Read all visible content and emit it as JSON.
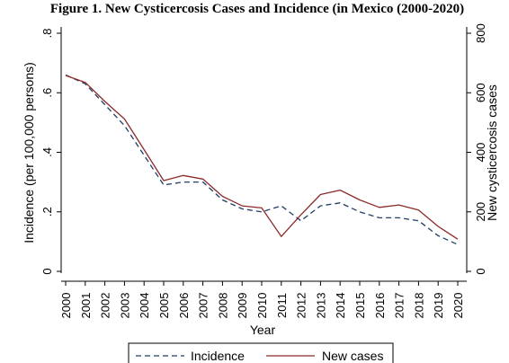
{
  "chart_data": {
    "type": "line",
    "title": "Figure 1. New Cysticercosis Cases and Incidence (in Mexico (2000-2020)",
    "xlabel": "Year",
    "ylabel_left": "Incidence (per 100,000 persons)",
    "ylabel_right": "New cysticercosis cases",
    "x": [
      2000,
      2001,
      2002,
      2003,
      2004,
      2005,
      2006,
      2007,
      2008,
      2009,
      2010,
      2011,
      2012,
      2013,
      2014,
      2015,
      2016,
      2017,
      2018,
      2019,
      2020
    ],
    "x_tick_labels": [
      "2000",
      "2001",
      "2002",
      "2003",
      "2004",
      "2005",
      "2006",
      "2007",
      "2008",
      "2009",
      "2010",
      "2011",
      "2012",
      "2013",
      "2014",
      "2015",
      "2016",
      "2017",
      "2018",
      "2019",
      "2020"
    ],
    "ylim_left": [
      0,
      0.8
    ],
    "yticks_left": [
      0,
      0.2,
      0.4,
      0.6,
      0.8
    ],
    "ytick_labels_left": [
      "0",
      ".2",
      ".4",
      ".6",
      ".8"
    ],
    "ylim_right": [
      0,
      800
    ],
    "yticks_right": [
      0,
      200,
      400,
      600,
      800
    ],
    "ytick_labels_right": [
      "0",
      "200",
      "400",
      "600",
      "800"
    ],
    "grid": false,
    "legend_position": "bottom",
    "series": [
      {
        "name": "Incidence",
        "axis": "left",
        "style": "dashed",
        "color": "#1f3d66",
        "values": [
          0.66,
          0.63,
          0.56,
          0.49,
          0.39,
          0.29,
          0.3,
          0.3,
          0.24,
          0.21,
          0.2,
          0.22,
          0.17,
          0.22,
          0.23,
          0.2,
          0.18,
          0.18,
          0.17,
          0.12,
          0.09
        ]
      },
      {
        "name": "New cases",
        "axis": "right",
        "style": "solid",
        "color": "#8c2a2a",
        "values": [
          658,
          635,
          571,
          512,
          409,
          305,
          322,
          310,
          252,
          220,
          213,
          117,
          190,
          258,
          273,
          240,
          215,
          223,
          206,
          151,
          108
        ]
      }
    ]
  }
}
